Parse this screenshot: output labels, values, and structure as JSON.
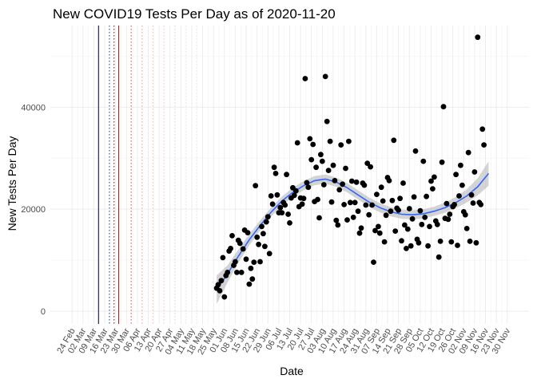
{
  "chart_data": {
    "type": "scatter",
    "title": "New COVID19 Tests Per Day as of 2020-11-20",
    "xlabel": "Date",
    "ylabel": "New Tests Per Day",
    "xlim": [
      "2020-02-24",
      "2020-11-30"
    ],
    "ylim": [
      -2500,
      56000
    ],
    "y_ticks": [
      0,
      20000,
      40000
    ],
    "y_tick_labels": [
      "0",
      "20000",
      "40000"
    ],
    "x_ticks": [
      "2020-02-24",
      "2020-03-02",
      "2020-03-09",
      "2020-03-16",
      "2020-03-23",
      "2020-03-30",
      "2020-04-06",
      "2020-04-13",
      "2020-04-20",
      "2020-04-27",
      "2020-05-04",
      "2020-05-11",
      "2020-05-18",
      "2020-05-25",
      "2020-06-01",
      "2020-06-08",
      "2020-06-15",
      "2020-06-22",
      "2020-06-29",
      "2020-07-06",
      "2020-07-13",
      "2020-07-20",
      "2020-07-27",
      "2020-08-03",
      "2020-08-10",
      "2020-08-17",
      "2020-08-24",
      "2020-08-31",
      "2020-09-07",
      "2020-09-14",
      "2020-09-21",
      "2020-09-28",
      "2020-10-05",
      "2020-10-12",
      "2020-10-19",
      "2020-10-26",
      "2020-11-02",
      "2020-11-09",
      "2020-11-16",
      "2020-11-23",
      "2020-11-30"
    ],
    "x_tick_labels": [
      "24 Feb",
      "02 Mar",
      "09 Mar",
      "16 Mar",
      "23 Mar",
      "30 Mar",
      "06 Apr",
      "13 Apr",
      "20 Apr",
      "27 Apr",
      "04 May",
      "11 May",
      "18 May",
      "25 May",
      "01 Jun",
      "08 Jun",
      "15 Jun",
      "22 Jun",
      "29 Jun",
      "06 Jul",
      "13 Jul",
      "20 Jul",
      "27 Jul",
      "03 Aug",
      "10 Aug",
      "17 Aug",
      "24 Aug",
      "31 Aug",
      "07 Sep",
      "14 Sep",
      "21 Sep",
      "28 Sep",
      "05 Oct",
      "12 Oct",
      "19 Oct",
      "26 Oct",
      "02 Nov",
      "09 Nov",
      "16 Nov",
      "23 Nov",
      "30 Nov"
    ],
    "grid": true,
    "vertical_reference_lines": [
      {
        "x": "2020-03-12",
        "color": "#000033",
        "style": "solid"
      },
      {
        "x": "2020-03-19",
        "color": "#1f3fbf",
        "style": "dotted"
      },
      {
        "x": "2020-03-22",
        "color": "#7a0000",
        "style": "dotted"
      },
      {
        "x": "2020-03-25",
        "color": "#a01010",
        "style": "solid"
      },
      {
        "x": "2020-04-02",
        "color": "#d94a4a",
        "style": "dotted"
      },
      {
        "x": "2020-04-09",
        "color": "#f0a0a0",
        "style": "dotted"
      },
      {
        "x": "2020-04-16",
        "color": "#f4b8b8",
        "style": "dotted"
      },
      {
        "x": "2020-04-23",
        "color": "#f7c8c8",
        "style": "dotted"
      },
      {
        "x": "2020-04-30",
        "color": "#f9d4d4",
        "style": "dotted"
      },
      {
        "x": "2020-05-07",
        "color": "#fbdede",
        "style": "dotted"
      },
      {
        "x": "2020-05-14",
        "color": "#fce4e4",
        "style": "dotted"
      }
    ],
    "series": [
      {
        "point_color": "#000000",
        "points": [
          [
            "2020-05-27",
            4500
          ],
          [
            "2020-05-28",
            5200
          ],
          [
            "2020-05-29",
            4000
          ],
          [
            "2020-05-30",
            6000
          ],
          [
            "2020-05-31",
            10500
          ],
          [
            "2020-06-01",
            2800
          ],
          [
            "2020-06-02",
            7000
          ],
          [
            "2020-06-03",
            7600
          ],
          [
            "2020-06-04",
            11800
          ],
          [
            "2020-06-05",
            12300
          ],
          [
            "2020-06-06",
            14800
          ],
          [
            "2020-06-07",
            9000
          ],
          [
            "2020-06-08",
            9700
          ],
          [
            "2020-06-09",
            7600
          ],
          [
            "2020-06-10",
            13900
          ],
          [
            "2020-06-11",
            13300
          ],
          [
            "2020-06-12",
            7600
          ],
          [
            "2020-06-13",
            12200
          ],
          [
            "2020-06-14",
            15900
          ],
          [
            "2020-06-15",
            10200
          ],
          [
            "2020-06-16",
            15400
          ],
          [
            "2020-06-17",
            5300
          ],
          [
            "2020-06-18",
            8400
          ],
          [
            "2020-06-19",
            6300
          ],
          [
            "2020-06-20",
            9600
          ],
          [
            "2020-06-21",
            24600
          ],
          [
            "2020-06-22",
            14500
          ],
          [
            "2020-06-23",
            13100
          ],
          [
            "2020-06-24",
            9700
          ],
          [
            "2020-06-25",
            16600
          ],
          [
            "2020-06-26",
            15200
          ],
          [
            "2020-06-27",
            12700
          ],
          [
            "2020-06-28",
            17500
          ],
          [
            "2020-06-29",
            18500
          ],
          [
            "2020-06-30",
            11300
          ],
          [
            "2020-07-01",
            22600
          ],
          [
            "2020-07-02",
            21000
          ],
          [
            "2020-07-03",
            28200
          ],
          [
            "2020-07-04",
            27000
          ],
          [
            "2020-07-05",
            22800
          ],
          [
            "2020-07-06",
            19300
          ],
          [
            "2020-07-07",
            20300
          ],
          [
            "2020-07-08",
            19300
          ],
          [
            "2020-07-09",
            21300
          ],
          [
            "2020-07-10",
            20800
          ],
          [
            "2020-07-11",
            26800
          ],
          [
            "2020-07-12",
            19000
          ],
          [
            "2020-07-13",
            17300
          ],
          [
            "2020-07-14",
            22200
          ],
          [
            "2020-07-15",
            24200
          ],
          [
            "2020-07-16",
            22700
          ],
          [
            "2020-07-17",
            23600
          ],
          [
            "2020-07-18",
            33000
          ],
          [
            "2020-07-19",
            20500
          ],
          [
            "2020-07-20",
            22200
          ],
          [
            "2020-07-21",
            21000
          ],
          [
            "2020-07-22",
            22100
          ],
          [
            "2020-07-23",
            45600
          ],
          [
            "2020-07-24",
            25200
          ],
          [
            "2020-07-25",
            24300
          ],
          [
            "2020-07-26",
            33800
          ],
          [
            "2020-07-27",
            29700
          ],
          [
            "2020-07-28",
            32700
          ],
          [
            "2020-07-29",
            21500
          ],
          [
            "2020-07-30",
            28200
          ],
          [
            "2020-07-31",
            21900
          ],
          [
            "2020-08-01",
            18300
          ],
          [
            "2020-08-02",
            30700
          ],
          [
            "2020-08-03",
            29400
          ],
          [
            "2020-08-04",
            24800
          ],
          [
            "2020-08-05",
            46000
          ],
          [
            "2020-08-06",
            37200
          ],
          [
            "2020-08-07",
            27600
          ],
          [
            "2020-08-08",
            33300
          ],
          [
            "2020-08-09",
            21400
          ],
          [
            "2020-08-10",
            28600
          ],
          [
            "2020-08-11",
            25600
          ],
          [
            "2020-08-12",
            17800
          ],
          [
            "2020-08-13",
            16900
          ],
          [
            "2020-08-14",
            23800
          ],
          [
            "2020-08-15",
            32600
          ],
          [
            "2020-08-16",
            24900
          ],
          [
            "2020-08-17",
            20900
          ],
          [
            "2020-08-18",
            28000
          ],
          [
            "2020-08-19",
            17900
          ],
          [
            "2020-08-20",
            33300
          ],
          [
            "2020-08-21",
            21300
          ],
          [
            "2020-08-22",
            25500
          ],
          [
            "2020-08-23",
            18400
          ],
          [
            "2020-08-24",
            21300
          ],
          [
            "2020-08-25",
            25300
          ],
          [
            "2020-08-26",
            19600
          ],
          [
            "2020-08-27",
            15300
          ],
          [
            "2020-08-28",
            16300
          ],
          [
            "2020-08-29",
            25100
          ],
          [
            "2020-08-30",
            24700
          ],
          [
            "2020-08-31",
            20800
          ],
          [
            "2020-09-01",
            29000
          ],
          [
            "2020-09-02",
            18900
          ],
          [
            "2020-09-03",
            28300
          ],
          [
            "2020-09-04",
            20800
          ],
          [
            "2020-09-05",
            9600
          ],
          [
            "2020-09-06",
            15800
          ],
          [
            "2020-09-07",
            22900
          ],
          [
            "2020-09-08",
            16600
          ],
          [
            "2020-09-09",
            15300
          ],
          [
            "2020-09-10",
            24300
          ],
          [
            "2020-09-11",
            21600
          ],
          [
            "2020-09-12",
            13600
          ],
          [
            "2020-09-13",
            18800
          ],
          [
            "2020-09-14",
            26200
          ],
          [
            "2020-09-15",
            25600
          ],
          [
            "2020-09-16",
            19600
          ],
          [
            "2020-09-17",
            21700
          ],
          [
            "2020-09-18",
            33500
          ],
          [
            "2020-09-19",
            15700
          ],
          [
            "2020-09-20",
            20200
          ],
          [
            "2020-09-21",
            19800
          ],
          [
            "2020-09-22",
            22100
          ],
          [
            "2020-09-23",
            13800
          ],
          [
            "2020-09-24",
            25100
          ],
          [
            "2020-09-25",
            16900
          ],
          [
            "2020-09-26",
            12300
          ],
          [
            "2020-09-27",
            16100
          ],
          [
            "2020-09-28",
            20100
          ],
          [
            "2020-09-29",
            12800
          ],
          [
            "2020-09-30",
            18100
          ],
          [
            "2020-10-01",
            22400
          ],
          [
            "2020-10-02",
            31400
          ],
          [
            "2020-10-03",
            14100
          ],
          [
            "2020-10-04",
            13400
          ],
          [
            "2020-10-05",
            19700
          ],
          [
            "2020-10-06",
            17000
          ],
          [
            "2020-10-07",
            29400
          ],
          [
            "2020-10-08",
            18400
          ],
          [
            "2020-10-09",
            22500
          ],
          [
            "2020-10-10",
            12800
          ],
          [
            "2020-10-11",
            16600
          ],
          [
            "2020-10-12",
            25500
          ],
          [
            "2020-10-13",
            24000
          ],
          [
            "2020-10-14",
            26300
          ],
          [
            "2020-10-15",
            17700
          ],
          [
            "2020-10-16",
            17000
          ],
          [
            "2020-10-17",
            10600
          ],
          [
            "2020-10-18",
            13700
          ],
          [
            "2020-10-19",
            29200
          ],
          [
            "2020-10-20",
            40100
          ],
          [
            "2020-10-21",
            18200
          ],
          [
            "2020-10-22",
            21100
          ],
          [
            "2020-10-23",
            18000
          ],
          [
            "2020-10-24",
            19000
          ],
          [
            "2020-10-25",
            13600
          ],
          [
            "2020-10-26",
            20500
          ],
          [
            "2020-10-27",
            20900
          ],
          [
            "2020-10-28",
            26800
          ],
          [
            "2020-10-29",
            12900
          ],
          [
            "2020-10-30",
            22600
          ],
          [
            "2020-10-31",
            28600
          ],
          [
            "2020-11-01",
            24700
          ],
          [
            "2020-11-02",
            19500
          ],
          [
            "2020-11-03",
            18900
          ],
          [
            "2020-11-04",
            16200
          ],
          [
            "2020-11-05",
            31100
          ],
          [
            "2020-11-06",
            13700
          ],
          [
            "2020-11-07",
            22800
          ],
          [
            "2020-11-08",
            21200
          ],
          [
            "2020-11-09",
            27300
          ],
          [
            "2020-11-10",
            13400
          ],
          [
            "2020-11-11",
            53700
          ],
          [
            "2020-11-12",
            21300
          ],
          [
            "2020-11-13",
            20900
          ],
          [
            "2020-11-14",
            35700
          ],
          [
            "2020-11-15",
            32600
          ]
        ],
        "smooth": {
          "color": "#3366ff",
          "band_color": "#bdbdbd",
          "points": [
            [
              "2020-05-27",
              4200,
              1400,
              7000
            ],
            [
              "2020-06-03",
              7300,
              5600,
              9000
            ],
            [
              "2020-06-10",
              10800,
              9500,
              12100
            ],
            [
              "2020-06-17",
              14000,
              12900,
              15100
            ],
            [
              "2020-06-24",
              16800,
              15800,
              17800
            ],
            [
              "2020-07-01",
              19400,
              18500,
              20300
            ],
            [
              "2020-07-08",
              21600,
              20700,
              22500
            ],
            [
              "2020-07-15",
              23300,
              22400,
              24200
            ],
            [
              "2020-07-22",
              24600,
              23700,
              25500
            ],
            [
              "2020-07-29",
              25600,
              24700,
              26500
            ],
            [
              "2020-08-05",
              25900,
              25000,
              26800
            ],
            [
              "2020-08-12",
              25300,
              24400,
              26200
            ],
            [
              "2020-08-19",
              24200,
              23300,
              25100
            ],
            [
              "2020-08-26",
              22800,
              21900,
              23700
            ],
            [
              "2020-09-02",
              21400,
              20500,
              22300
            ],
            [
              "2020-09-09",
              20300,
              19400,
              21200
            ],
            [
              "2020-09-16",
              19500,
              18600,
              20400
            ],
            [
              "2020-09-23",
              19000,
              18100,
              19900
            ],
            [
              "2020-09-30",
              18900,
              18000,
              19800
            ],
            [
              "2020-10-07",
              19100,
              18200,
              20000
            ],
            [
              "2020-10-14",
              19600,
              18700,
              20500
            ],
            [
              "2020-10-21",
              20300,
              19300,
              21300
            ],
            [
              "2020-10-28",
              21300,
              20200,
              22400
            ],
            [
              "2020-11-04",
              22600,
              21300,
              23900
            ],
            [
              "2020-11-11",
              24400,
              22700,
              26100
            ],
            [
              "2020-11-18",
              27000,
              24600,
              29400
            ]
          ]
        }
      }
    ]
  }
}
